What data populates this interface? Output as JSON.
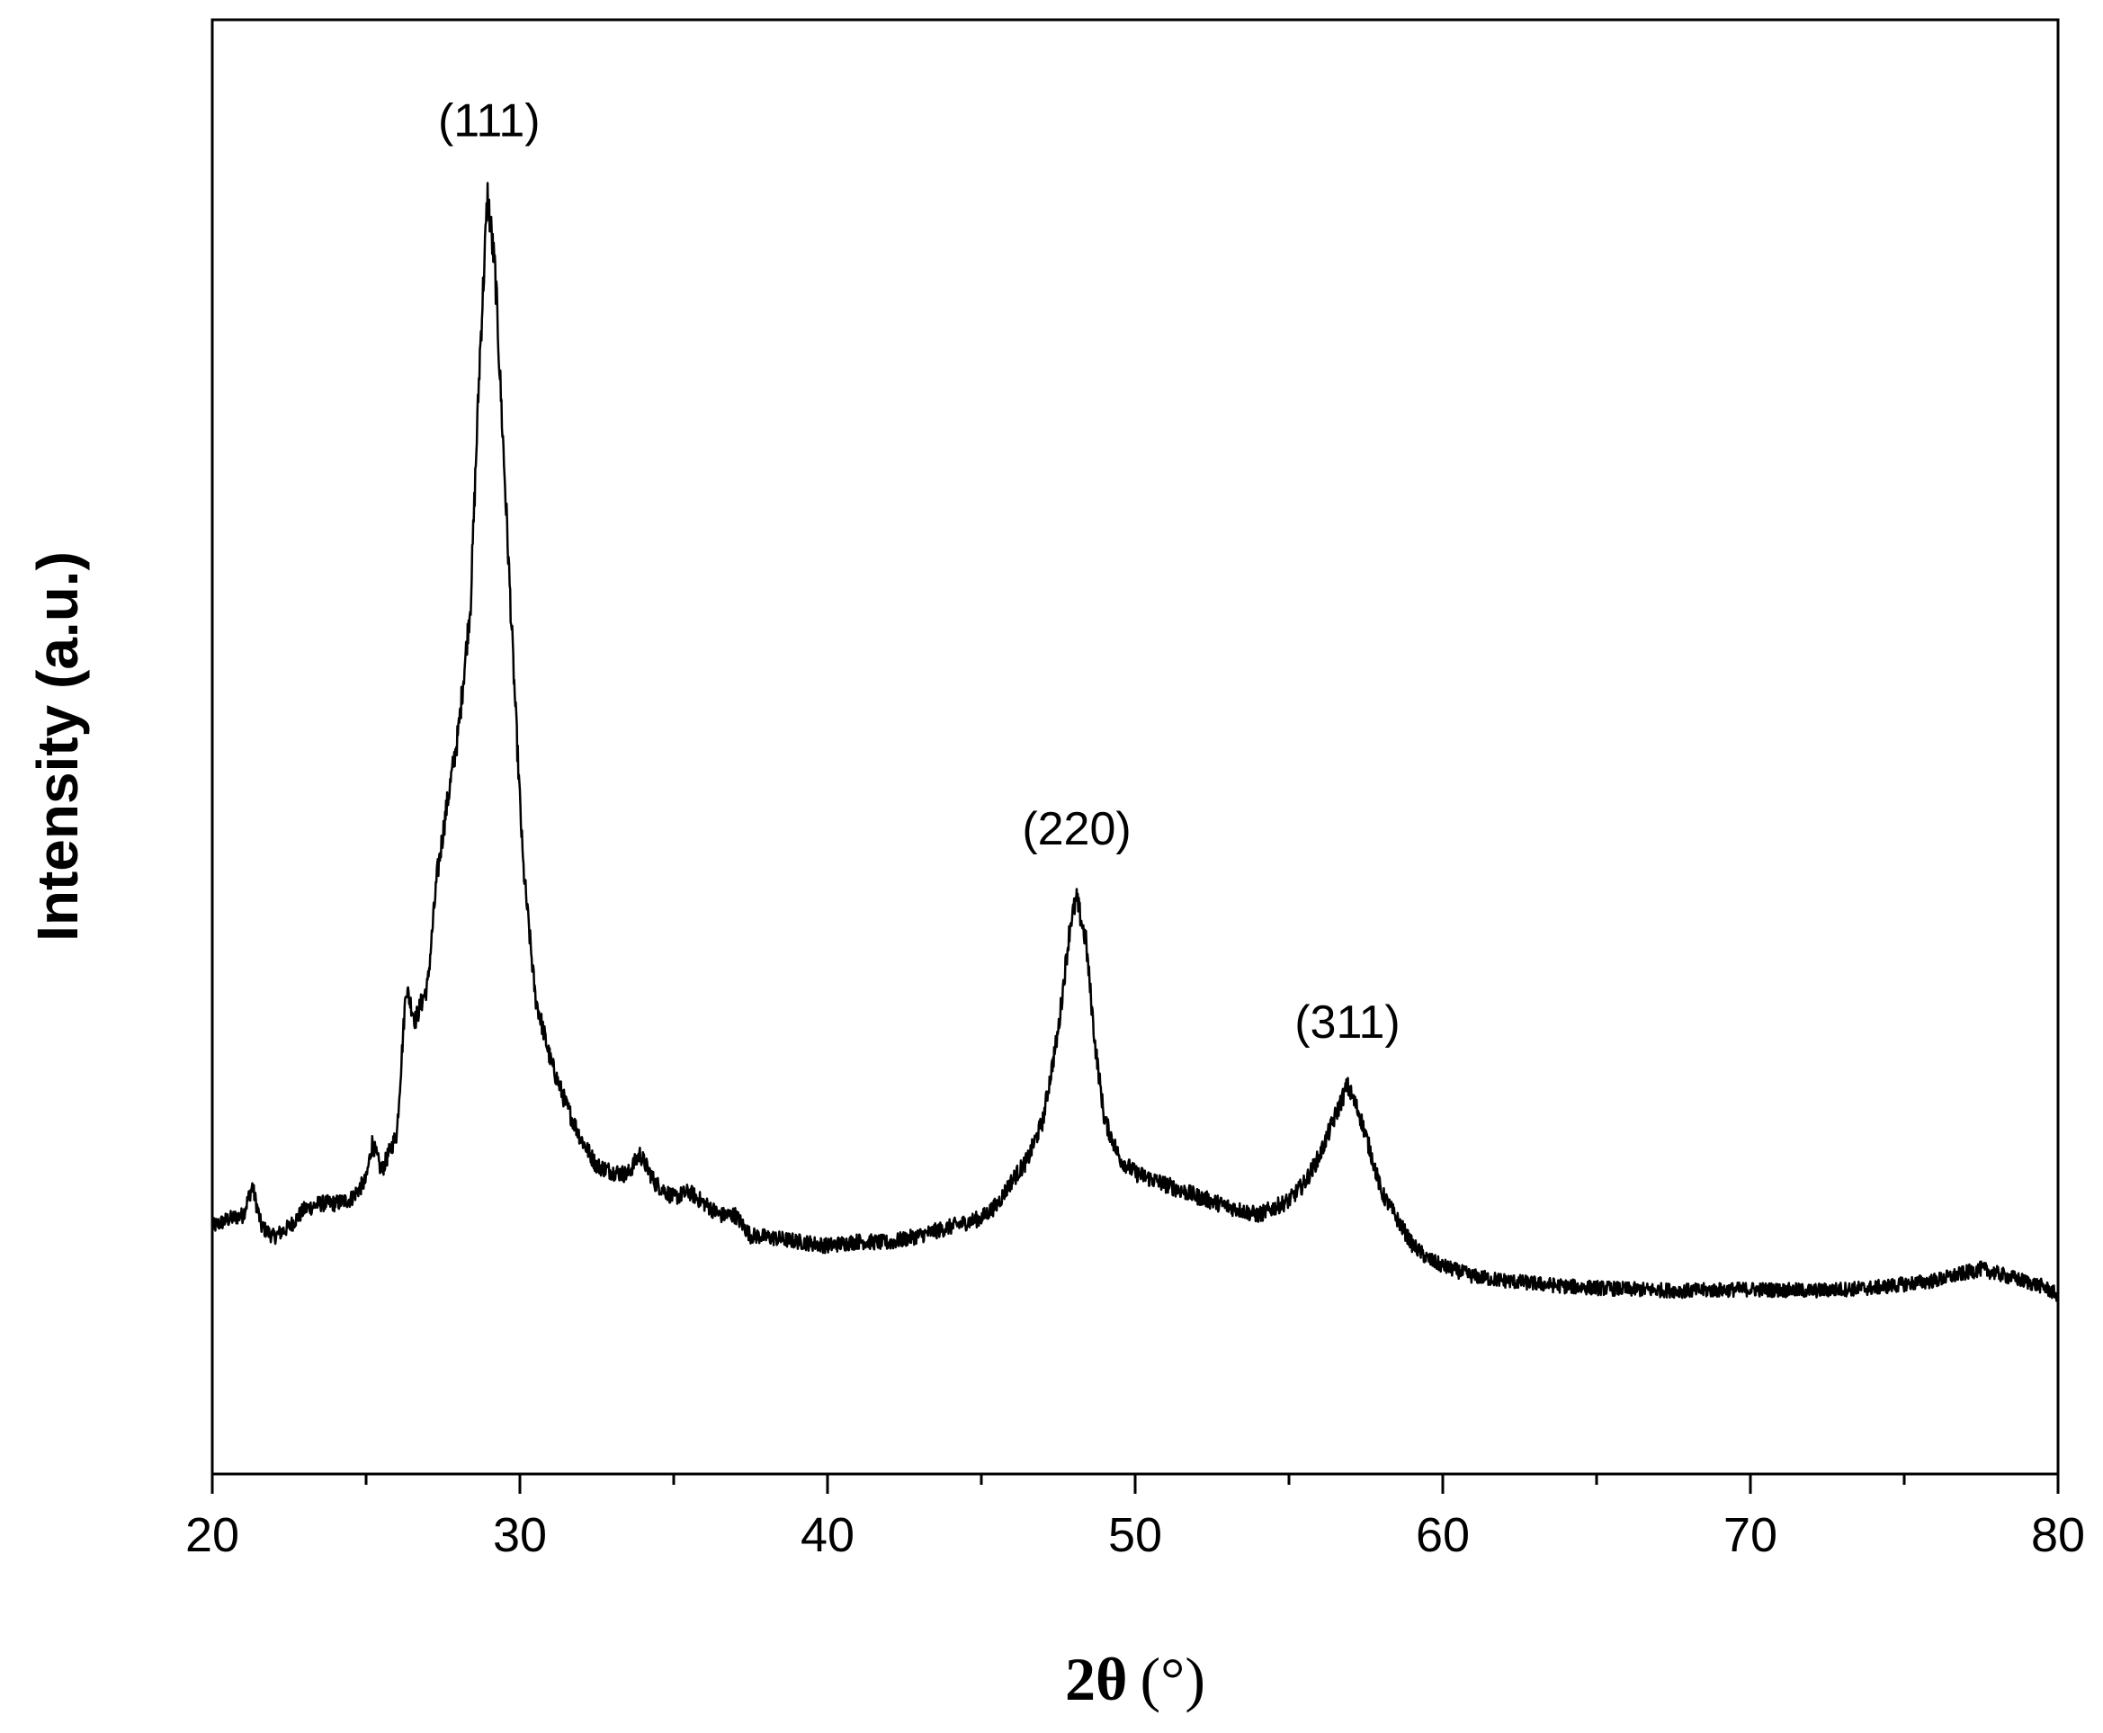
{
  "chart_data": {
    "type": "line",
    "xlabel_main": "2θ",
    "xlabel_unit": "(°)",
    "ylabel": "Intensity (a.u.)",
    "xlim": [
      20,
      80
    ],
    "ylim": [
      0,
      100
    ],
    "x_ticks": [
      20,
      30,
      40,
      50,
      60,
      70,
      80
    ],
    "grid": false,
    "legend": "none",
    "y_tick_labels": false,
    "series": [
      {
        "values": [
          [
            20.0,
            17.0
          ],
          [
            20.5,
            17.5
          ],
          [
            21.0,
            17.8
          ],
          [
            21.3,
            19.8
          ],
          [
            21.6,
            17.0
          ],
          [
            22.0,
            16.3
          ],
          [
            22.5,
            17.0
          ],
          [
            23.0,
            18.2
          ],
          [
            23.5,
            18.6
          ],
          [
            24.0,
            18.6
          ],
          [
            24.5,
            18.9
          ],
          [
            25.0,
            20.2
          ],
          [
            25.2,
            22.8
          ],
          [
            25.5,
            20.8
          ],
          [
            26.0,
            23.4
          ],
          [
            26.3,
            33.5
          ],
          [
            26.6,
            31.2
          ],
          [
            27.0,
            33.6
          ],
          [
            27.3,
            41.0
          ],
          [
            27.6,
            45.6
          ],
          [
            28.0,
            51.0
          ],
          [
            28.4,
            60.0
          ],
          [
            28.7,
            77.0
          ],
          [
            28.95,
            87.9
          ],
          [
            29.2,
            82.5
          ],
          [
            29.5,
            68.8
          ],
          [
            29.8,
            55.0
          ],
          [
            30.1,
            42.0
          ],
          [
            30.5,
            32.8
          ],
          [
            31.0,
            28.4
          ],
          [
            31.5,
            25.4
          ],
          [
            32.0,
            23.0
          ],
          [
            32.5,
            21.2
          ],
          [
            33.0,
            20.8
          ],
          [
            33.5,
            20.6
          ],
          [
            33.9,
            22.0
          ],
          [
            34.4,
            20.0
          ],
          [
            35.0,
            19.0
          ],
          [
            35.5,
            19.4
          ],
          [
            36.0,
            18.6
          ],
          [
            36.5,
            17.8
          ],
          [
            37.0,
            17.8
          ],
          [
            37.5,
            16.4
          ],
          [
            38.0,
            16.3
          ],
          [
            39.0,
            16.0
          ],
          [
            40.0,
            15.7
          ],
          [
            41.0,
            16.0
          ],
          [
            42.0,
            15.9
          ],
          [
            43.0,
            16.4
          ],
          [
            44.0,
            17.0
          ],
          [
            45.0,
            17.6
          ],
          [
            45.5,
            18.5
          ],
          [
            46.0,
            20.2
          ],
          [
            46.5,
            21.6
          ],
          [
            47.0,
            24.3
          ],
          [
            47.5,
            30.5
          ],
          [
            47.9,
            38.0
          ],
          [
            48.1,
            39.5
          ],
          [
            48.4,
            36.6
          ],
          [
            48.7,
            29.5
          ],
          [
            49.0,
            24.4
          ],
          [
            49.5,
            21.7
          ],
          [
            50.0,
            20.7
          ],
          [
            51.0,
            19.9
          ],
          [
            52.0,
            19.1
          ],
          [
            53.0,
            18.4
          ],
          [
            54.0,
            17.8
          ],
          [
            55.0,
            18.8
          ],
          [
            55.5,
            20.0
          ],
          [
            56.0,
            21.9
          ],
          [
            56.5,
            24.6
          ],
          [
            56.9,
            26.7
          ],
          [
            57.3,
            24.7
          ],
          [
            57.7,
            21.8
          ],
          [
            58.0,
            19.4
          ],
          [
            58.5,
            17.6
          ],
          [
            59.0,
            15.8
          ],
          [
            59.5,
            14.8
          ],
          [
            60.0,
            14.3
          ],
          [
            61.0,
            13.6
          ],
          [
            62.0,
            13.3
          ],
          [
            64.0,
            12.9
          ],
          [
            66.0,
            12.7
          ],
          [
            68.0,
            12.6
          ],
          [
            70.0,
            12.7
          ],
          [
            72.0,
            12.6
          ],
          [
            74.0,
            12.8
          ],
          [
            76.0,
            13.3
          ],
          [
            77.5,
            14.1
          ],
          [
            78.5,
            13.5
          ],
          [
            79.5,
            12.9
          ],
          [
            80.0,
            12.3
          ]
        ]
      }
    ],
    "annotations": [
      {
        "text": "(111)",
        "x": 29.0,
        "y": 92.0
      },
      {
        "text": "(220)",
        "x": 48.1,
        "y": 43.3
      },
      {
        "text": "(311)",
        "x": 56.9,
        "y": 30.0
      }
    ]
  }
}
